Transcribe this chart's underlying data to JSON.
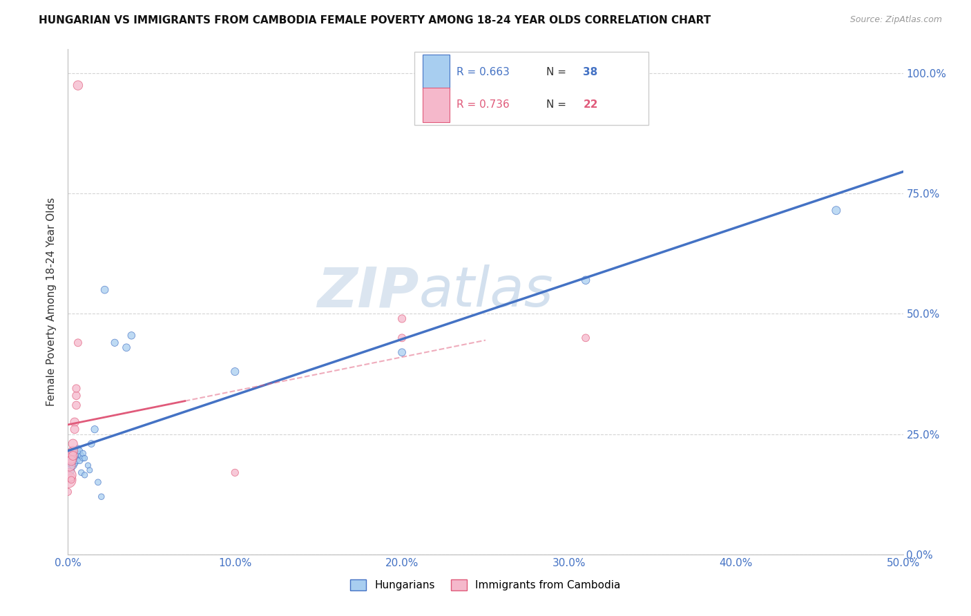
{
  "title": "HUNGARIAN VS IMMIGRANTS FROM CAMBODIA FEMALE POVERTY AMONG 18-24 YEAR OLDS CORRELATION CHART",
  "source": "Source: ZipAtlas.com",
  "ylabel": "Female Poverty Among 18-24 Year Olds",
  "legend_blue_r": "R = 0.663",
  "legend_blue_n": "N = 38",
  "legend_pink_r": "R = 0.736",
  "legend_pink_n": "N = 22",
  "legend_label_blue": "Hungarians",
  "legend_label_pink": "Immigrants from Cambodia",
  "blue_color": "#a8cef0",
  "pink_color": "#f5b8cb",
  "blue_line_color": "#4472c4",
  "pink_line_color": "#e05a7a",
  "blue_scatter": [
    [
      0.0,
      0.195
    ],
    [
      0.001,
      0.185
    ],
    [
      0.001,
      0.175
    ],
    [
      0.002,
      0.2
    ],
    [
      0.002,
      0.19
    ],
    [
      0.002,
      0.21
    ],
    [
      0.003,
      0.195
    ],
    [
      0.003,
      0.205
    ],
    [
      0.003,
      0.185
    ],
    [
      0.004,
      0.2
    ],
    [
      0.004,
      0.215
    ],
    [
      0.004,
      0.19
    ],
    [
      0.005,
      0.205
    ],
    [
      0.005,
      0.195
    ],
    [
      0.006,
      0.21
    ],
    [
      0.006,
      0.22
    ],
    [
      0.007,
      0.195
    ],
    [
      0.007,
      0.215
    ],
    [
      0.008,
      0.205
    ],
    [
      0.008,
      0.17
    ],
    [
      0.009,
      0.2
    ],
    [
      0.009,
      0.21
    ],
    [
      0.01,
      0.165
    ],
    [
      0.01,
      0.2
    ],
    [
      0.012,
      0.185
    ],
    [
      0.013,
      0.175
    ],
    [
      0.014,
      0.23
    ],
    [
      0.016,
      0.26
    ],
    [
      0.018,
      0.15
    ],
    [
      0.02,
      0.12
    ],
    [
      0.022,
      0.55
    ],
    [
      0.028,
      0.44
    ],
    [
      0.035,
      0.43
    ],
    [
      0.038,
      0.455
    ],
    [
      0.1,
      0.38
    ],
    [
      0.2,
      0.42
    ],
    [
      0.31,
      0.57
    ],
    [
      0.46,
      0.715
    ]
  ],
  "pink_scatter": [
    [
      0.0,
      0.155
    ],
    [
      0.001,
      0.165
    ],
    [
      0.001,
      0.185
    ],
    [
      0.002,
      0.2
    ],
    [
      0.002,
      0.21
    ],
    [
      0.002,
      0.195
    ],
    [
      0.003,
      0.215
    ],
    [
      0.003,
      0.23
    ],
    [
      0.003,
      0.205
    ],
    [
      0.004,
      0.275
    ],
    [
      0.004,
      0.26
    ],
    [
      0.005,
      0.31
    ],
    [
      0.005,
      0.33
    ],
    [
      0.005,
      0.345
    ],
    [
      0.006,
      0.44
    ],
    [
      0.006,
      0.975
    ],
    [
      0.1,
      0.17
    ],
    [
      0.2,
      0.49
    ],
    [
      0.2,
      0.45
    ],
    [
      0.31,
      0.45
    ],
    [
      0.0,
      0.13
    ],
    [
      0.002,
      0.155
    ]
  ],
  "blue_sizes": [
    220,
    120,
    100,
    90,
    80,
    75,
    70,
    65,
    60,
    60,
    55,
    50,
    50,
    48,
    48,
    45,
    44,
    42,
    40,
    38,
    40,
    38,
    36,
    35,
    35,
    33,
    50,
    55,
    40,
    38,
    60,
    55,
    60,
    58,
    65,
    60,
    70,
    75
  ],
  "pink_sizes": [
    280,
    180,
    140,
    120,
    110,
    100,
    95,
    90,
    85,
    80,
    75,
    70,
    68,
    65,
    62,
    95,
    55,
    65,
    62,
    60,
    55,
    50
  ],
  "xlim": [
    0.0,
    0.5
  ],
  "ylim": [
    0.0,
    1.05
  ],
  "ytick_vals": [
    0.0,
    0.25,
    0.5,
    0.75,
    1.0
  ],
  "ytick_labels": [
    "0.0%",
    "25.0%",
    "50.0%",
    "75.0%",
    "100.0%"
  ],
  "xtick_vals": [
    0.0,
    0.1,
    0.2,
    0.3,
    0.4,
    0.5
  ],
  "xtick_labels": [
    "0.0%",
    "10.0%",
    "20.0%",
    "30.0%",
    "40.0%",
    "50.0%"
  ],
  "watermark_zip": "ZIP",
  "watermark_atlas": "atlas",
  "bg_color": "#ffffff",
  "grid_color": "#d0d0d0",
  "tick_color": "#4472c4",
  "text_color": "#333333"
}
